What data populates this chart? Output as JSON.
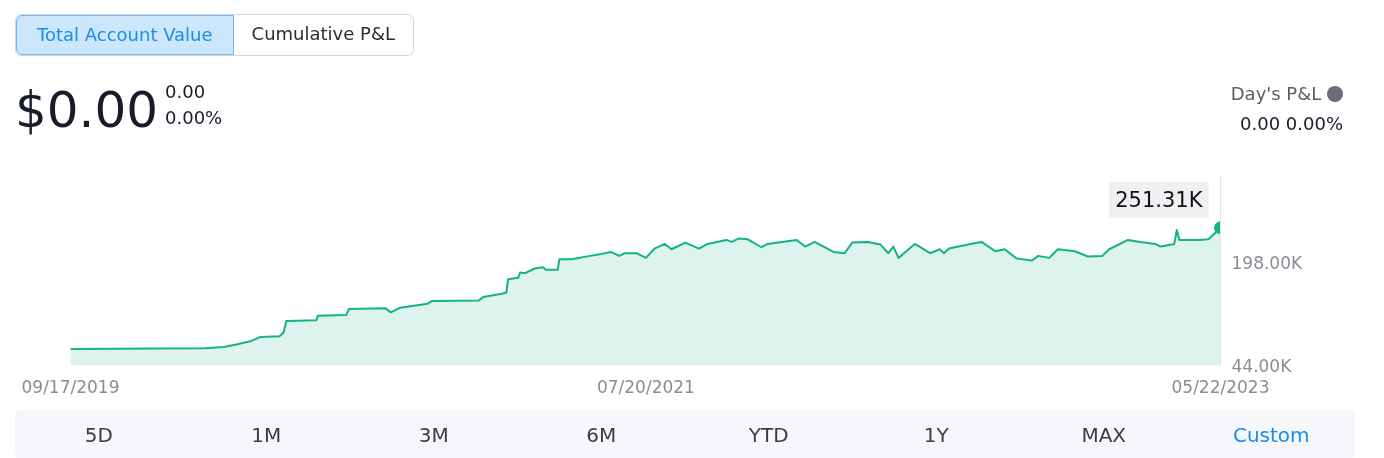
{
  "chart_data": {
    "type": "area",
    "annotations": [
      "Total Account Value",
      "Cumulative P&L",
      "$0.00",
      "0.00",
      "0.00%",
      "Day's P&L",
      "0.00 0.00%",
      "5D",
      "1M",
      "3M",
      "6M",
      "YTD",
      "1Y",
      "MAX",
      "Custom",
      {
        "text": "251.31K",
        "x": "2023-05-22",
        "y": 251310
      }
    ],
    "x": [
      "2019-09-17",
      "2020-02-21",
      "2020-03-14",
      "2020-03-30",
      "2020-04-15",
      "2020-04-26",
      "2020-05-18",
      "2020-05-23",
      "2020-05-26",
      "2020-06-30",
      "2020-07-02",
      "2020-08-04",
      "2020-08-07",
      "2020-09-19",
      "2020-09-25",
      "2020-10-06",
      "2020-11-07",
      "2020-11-12",
      "2021-01-06",
      "2021-01-11",
      "2021-01-19",
      "2021-02-02",
      "2021-02-07",
      "2021-02-09",
      "2021-02-21",
      "2021-02-23",
      "2021-03-01",
      "2021-03-12",
      "2021-03-22",
      "2021-03-25",
      "2021-04-08",
      "2021-04-10",
      "2021-04-24",
      "2021-05-16",
      "2021-05-29",
      "2021-06-09",
      "2021-06-19",
      "2021-06-25",
      "2021-07-09",
      "2021-07-20",
      "2021-07-30",
      "2021-08-11",
      "2021-08-19",
      "2021-09-04",
      "2021-09-20",
      "2021-09-30",
      "2021-10-22",
      "2021-10-28",
      "2021-11-05",
      "2021-11-16",
      "2021-11-21",
      "2021-12-02",
      "2021-12-09",
      "2022-01-12",
      "2022-01-22",
      "2022-02-02",
      "2022-02-18",
      "2022-02-24",
      "2022-03-09",
      "2022-03-18",
      "2022-04-05",
      "2022-04-20",
      "2022-04-29",
      "2022-05-05",
      "2022-05-11",
      "2022-05-30",
      "2022-06-17",
      "2022-06-28",
      "2022-07-03",
      "2022-07-09",
      "2022-08-03",
      "2022-08-16",
      "2022-09-01",
      "2022-09-12",
      "2022-09-26",
      "2022-10-14",
      "2022-10-21",
      "2022-11-03",
      "2022-11-13",
      "2022-12-03",
      "2022-12-18",
      "2023-01-04",
      "2023-01-12",
      "2023-02-03",
      "2023-02-17",
      "2023-03-07",
      "2023-03-13",
      "2023-03-29",
      "2023-04-01",
      "2023-04-04",
      "2023-04-27",
      "2023-05-08",
      "2023-05-22"
    ],
    "series": [
      {
        "color": "#14b386",
        "values": [
          69000,
          70000,
          72000,
          76000,
          81000,
          87000,
          88000,
          94000,
          111000,
          112000,
          119000,
          120000,
          129000,
          130000,
          124000,
          131000,
          137000,
          141000,
          142000,
          147000,
          149000,
          152000,
          154000,
          174000,
          176000,
          184000,
          183000,
          190000,
          192000,
          188000,
          188000,
          204000,
          204000,
          209000,
          212000,
          215000,
          209000,
          213000,
          213000,
          206000,
          220000,
          227000,
          219000,
          229000,
          220000,
          227000,
          233000,
          230000,
          235000,
          234000,
          230000,
          222000,
          227000,
          233000,
          223000,
          230000,
          219000,
          215000,
          213000,
          229000,
          230000,
          226000,
          213000,
          223000,
          206000,
          227000,
          213000,
          219000,
          213000,
          220000,
          227000,
          230000,
          216000,
          219000,
          205000,
          202000,
          209000,
          206000,
          219000,
          216000,
          208000,
          209000,
          219000,
          233000,
          230000,
          227000,
          223000,
          227000,
          248000,
          233000,
          233000,
          234000,
          251310
        ]
      }
    ],
    "xlim": [
      "2019-09-17",
      "2023-05-22"
    ],
    "xticks": [
      {
        "value": "2019-09-17",
        "label": "09/17/2019"
      },
      {
        "value": "2021-07-20",
        "label": "07/20/2021"
      },
      {
        "value": "2023-05-22",
        "label": "05/22/2023"
      }
    ],
    "ylim": [
      44000,
      330000
    ],
    "yticks": [
      {
        "value": 44000,
        "label": "44.00K"
      },
      {
        "value": 198000,
        "label": "198.00K"
      }
    ]
  }
}
